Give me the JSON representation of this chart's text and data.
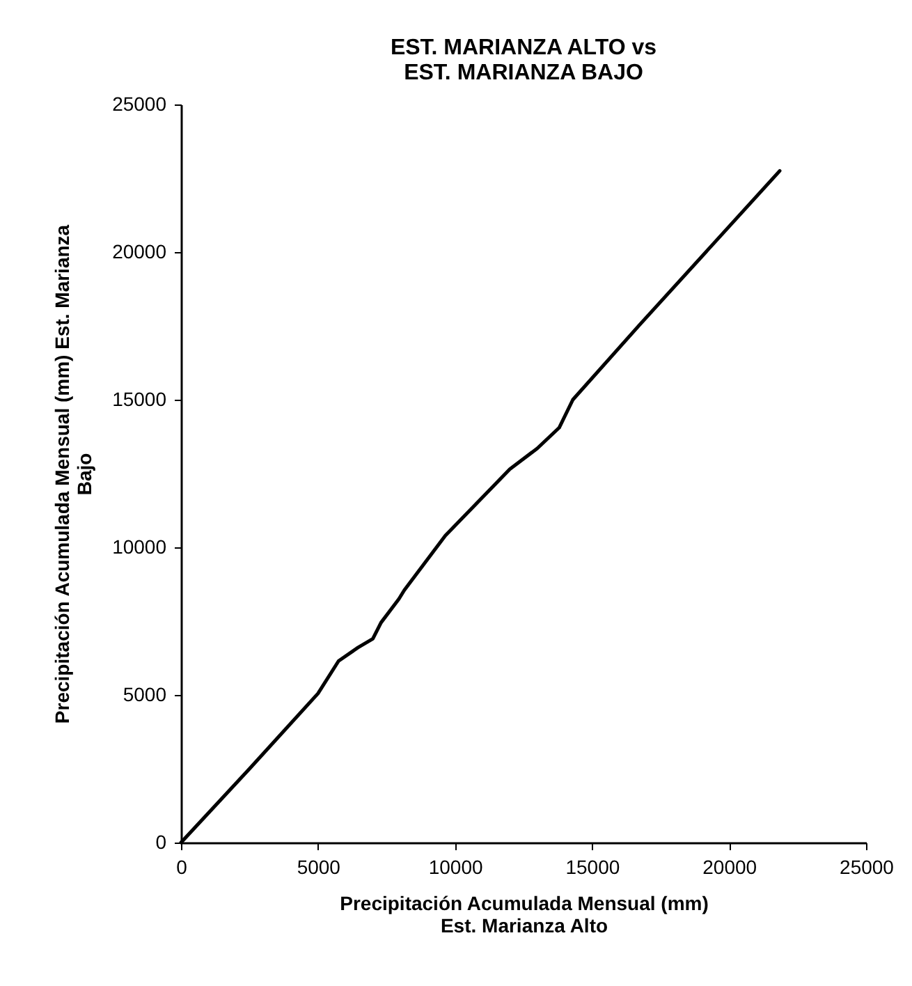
{
  "chart_data": {
    "type": "line",
    "title": "EST. MARIANZA ALTO vs\nEST. MARIANZA BAJO",
    "xlabel": "Precipitación Acumulada Mensual (mm)\nEst. Marianza Alto",
    "ylabel": "Precipitación Acumulada Mensual (mm) Est. Marianza\nBajo",
    "x": [
      0,
      2500,
      5000,
      5750,
      6450,
      7000,
      7300,
      7950,
      8150,
      9650,
      12000,
      13000,
      13800,
      14300,
      16750,
      21850
    ],
    "series": [
      {
        "color": "#000000",
        "values": [
          0,
          2500,
          5050,
          6150,
          6600,
          6900,
          7450,
          8250,
          8550,
          10400,
          12650,
          13350,
          14050,
          15000,
          17550,
          22750
        ]
      }
    ],
    "xlim": [
      0,
      25000
    ],
    "ylim": [
      0,
      25000
    ],
    "xticks": [
      0,
      5000,
      10000,
      15000,
      20000,
      25000
    ],
    "yticks": [
      0,
      5000,
      10000,
      15000,
      20000,
      25000
    ],
    "grid": false,
    "marker": "none",
    "line_style": "solid"
  }
}
